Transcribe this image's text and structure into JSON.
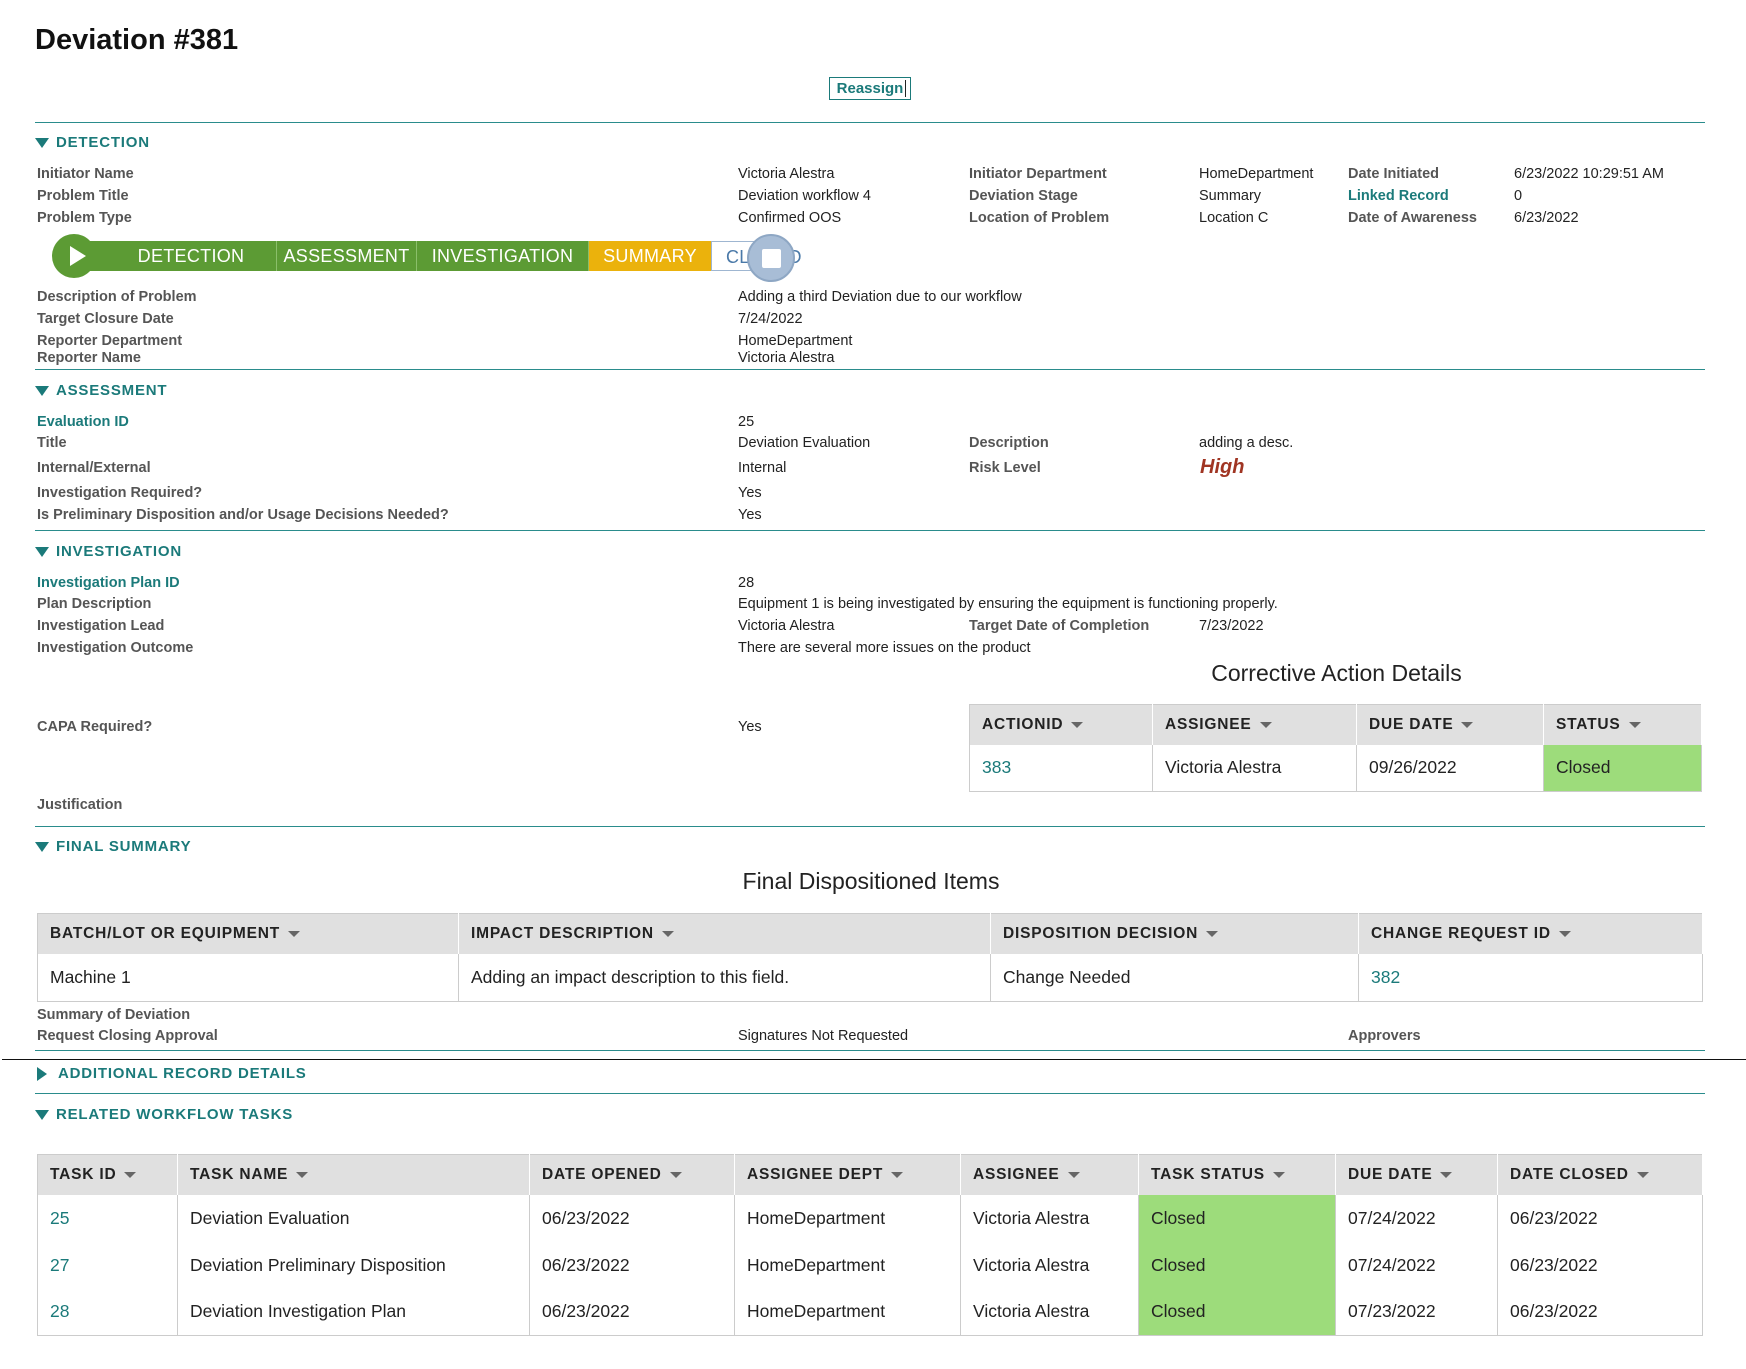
{
  "page": {
    "title": "Deviation #381",
    "reassign_label": "Reassign"
  },
  "sections": {
    "detection": "DETECTION",
    "assessment": "ASSESSMENT",
    "investigation": "INVESTIGATION",
    "final_summary": "FINAL SUMMARY",
    "additional": "ADDITIONAL RECORD DETAILS",
    "related": "RELATED WORKFLOW TASKS"
  },
  "detection": {
    "initiator_name_label": "Initiator Name",
    "initiator_name": "Victoria Alestra",
    "problem_title_label": "Problem Title",
    "problem_title": "Deviation workflow 4",
    "problem_type_label": "Problem Type",
    "problem_type": "Confirmed OOS",
    "initiator_dept_label": "Initiator Department",
    "initiator_dept": "HomeDepartment",
    "stage_label": "Deviation Stage",
    "stage": "Summary",
    "location_label": "Location of Problem",
    "location": "Location C",
    "date_initiated_label": "Date Initiated",
    "date_initiated": "6/23/2022 10:29:51 AM",
    "linked_record_label": "Linked Record",
    "linked_record": "0",
    "awareness_label": "Date of Awareness",
    "awareness": "6/23/2022",
    "description_label": "Description of Problem",
    "description": "Adding a third Deviation due to our workflow",
    "target_closure_label": "Target Closure Date",
    "target_closure": "7/24/2022",
    "reporter_dept_label": "Reporter Department",
    "reporter_dept": "HomeDepartment",
    "reporter_name_label": "Reporter Name",
    "reporter_name": "Victoria Alestra"
  },
  "stages": [
    {
      "label": "DETECTION",
      "state": "done"
    },
    {
      "label": "ASSESSMENT",
      "state": "done"
    },
    {
      "label": "INVESTIGATION",
      "state": "done"
    },
    {
      "label": "SUMMARY",
      "state": "current"
    },
    {
      "label": "CLOSED",
      "state": "pending"
    }
  ],
  "assessment": {
    "eval_id_label": "Evaluation ID",
    "eval_id": "25",
    "title_label": "Title",
    "title": "Deviation Evaluation",
    "internal_label": "Internal/External",
    "internal": "Internal",
    "inv_required_label": "Investigation Required?",
    "inv_required": "Yes",
    "prelim_label": "Is Preliminary Disposition and/or Usage Decisions Needed?",
    "prelim": "Yes",
    "desc_label": "Description",
    "desc": "adding a desc.",
    "risk_label": "Risk Level",
    "risk": "High",
    "risk_color": "#a03523"
  },
  "investigation": {
    "plan_id_label": "Investigation Plan ID",
    "plan_id": "28",
    "plan_desc_label": "Plan Description",
    "plan_desc": "Equipment 1 is being investigated by ensuring the equipment is functioning properly.",
    "lead_label": "Investigation Lead",
    "lead": "Victoria Alestra",
    "target_label": "Target Date of Completion",
    "target": "7/23/2022",
    "outcome_label": "Investigation Outcome",
    "outcome": "There are several more issues on the product",
    "capa_label": "CAPA Required?",
    "capa": "Yes",
    "justification_label": "Justification",
    "corrective_title": "Corrective Action Details",
    "corrective_headers": [
      "ACTIONID",
      "ASSIGNEE",
      "DUE DATE",
      "STATUS"
    ],
    "corrective_rows": [
      {
        "id": "383",
        "assignee": "Victoria Alestra",
        "due": "09/26/2022",
        "status": "Closed"
      }
    ]
  },
  "final_summary": {
    "items_title": "Final Dispositioned Items",
    "headers": [
      "BATCH/LOT OR EQUIPMENT",
      "IMPACT DESCRIPTION",
      "DISPOSITION DECISION",
      "CHANGE REQUEST ID"
    ],
    "rows": [
      {
        "batch": "Machine 1",
        "impact": "Adding an impact description to this field.",
        "decision": "Change Needed",
        "cr_id": "382"
      }
    ],
    "summary_label": "Summary of Deviation",
    "closing_label": "Request Closing Approval",
    "closing": "Signatures Not Requested",
    "approvers_label": "Approvers"
  },
  "tasks": {
    "headers": [
      "TASK ID",
      "TASK NAME",
      "DATE OPENED",
      "ASSIGNEE DEPT",
      "ASSIGNEE",
      "TASK STATUS",
      "DUE DATE",
      "DATE CLOSED"
    ],
    "rows": [
      {
        "id": "25",
        "name": "Deviation Evaluation",
        "opened": "06/23/2022",
        "dept": "HomeDepartment",
        "assignee": "Victoria Alestra",
        "status": "Closed",
        "due": "07/24/2022",
        "closed": "06/23/2022"
      },
      {
        "id": "27",
        "name": "Deviation Preliminary Disposition",
        "opened": "06/23/2022",
        "dept": "HomeDepartment",
        "assignee": "Victoria Alestra",
        "status": "Closed",
        "due": "07/24/2022",
        "closed": "06/23/2022"
      },
      {
        "id": "28",
        "name": "Deviation Investigation Plan",
        "opened": "06/23/2022",
        "dept": "HomeDepartment",
        "assignee": "Victoria Alestra",
        "status": "Closed",
        "due": "07/23/2022",
        "closed": "06/23/2022"
      }
    ]
  },
  "colors": {
    "accent": "#1b7a7a",
    "stage_done": "#5c9b34",
    "stage_current": "#ebb20c",
    "status_closed": "#9ddc7b"
  }
}
